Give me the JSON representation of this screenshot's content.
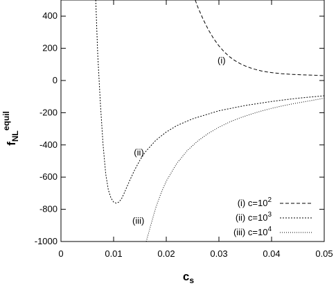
{
  "chart_data": {
    "type": "line",
    "xlabel_main": "c",
    "xlabel_sub": "s",
    "ylabel_main": "f",
    "ylabel_sub": "NL",
    "ylabel_sup": "equil",
    "xlim": [
      0,
      0.05
    ],
    "ylim": [
      -1000,
      500
    ],
    "xticks": [
      0,
      0.01,
      0.02,
      0.03,
      0.04,
      0.05
    ],
    "xtick_labels": [
      "0",
      "0.01",
      "0.02",
      "0.03",
      "0.04",
      "0.05"
    ],
    "yticks": [
      -1000,
      -800,
      -600,
      -400,
      -200,
      0,
      200,
      400
    ],
    "ytick_labels": [
      "-1000",
      "-800",
      "-600",
      "-400",
      "-200",
      "0",
      "200",
      "400"
    ],
    "grid": false,
    "legend_position": "bottom-right",
    "series": [
      {
        "id": "i",
        "legend_prefix": "(i) c=10",
        "legend_exp": "2",
        "annotation": "(i)",
        "annotation_at": [
          0.0305,
          105
        ],
        "color": "#000000",
        "dash": "5,3",
        "points": [
          [
            0.0255,
            500
          ],
          [
            0.026,
            455
          ],
          [
            0.027,
            380
          ],
          [
            0.028,
            315
          ],
          [
            0.029,
            260
          ],
          [
            0.03,
            215
          ],
          [
            0.031,
            178
          ],
          [
            0.032,
            148
          ],
          [
            0.033,
            124
          ],
          [
            0.034,
            105
          ],
          [
            0.035,
            90
          ],
          [
            0.036,
            78
          ],
          [
            0.037,
            68
          ],
          [
            0.038,
            60
          ],
          [
            0.039,
            54
          ],
          [
            0.04,
            49
          ],
          [
            0.042,
            42
          ],
          [
            0.044,
            38
          ],
          [
            0.046,
            35
          ],
          [
            0.048,
            33
          ],
          [
            0.05,
            30
          ]
        ]
      },
      {
        "id": "ii",
        "legend_prefix": "(ii) c=10",
        "legend_exp": "3",
        "annotation": "(ii)",
        "annotation_at": [
          0.0148,
          -465
        ],
        "color": "#000000",
        "dash": "2,2",
        "points": [
          [
            0.0066,
            500
          ],
          [
            0.0068,
            320
          ],
          [
            0.007,
            150
          ],
          [
            0.0075,
            -150
          ],
          [
            0.008,
            -400
          ],
          [
            0.0085,
            -580
          ],
          [
            0.009,
            -680
          ],
          [
            0.0095,
            -730
          ],
          [
            0.01,
            -755
          ],
          [
            0.0105,
            -762
          ],
          [
            0.011,
            -755
          ],
          [
            0.0115,
            -735
          ],
          [
            0.012,
            -700
          ],
          [
            0.013,
            -625
          ],
          [
            0.014,
            -555
          ],
          [
            0.015,
            -495
          ],
          [
            0.016,
            -445
          ],
          [
            0.018,
            -372
          ],
          [
            0.02,
            -320
          ],
          [
            0.022,
            -280
          ],
          [
            0.025,
            -238
          ],
          [
            0.03,
            -188
          ],
          [
            0.035,
            -155
          ],
          [
            0.04,
            -130
          ],
          [
            0.045,
            -110
          ],
          [
            0.05,
            -95
          ]
        ]
      },
      {
        "id": "iii",
        "legend_prefix": "(iii) c=10",
        "legend_exp": "4",
        "annotation": "(iii)",
        "annotation_at": [
          0.0147,
          -890
        ],
        "color": "#000000",
        "dash": "1,2",
        "points": [
          [
            0.0162,
            -1000
          ],
          [
            0.017,
            -905
          ],
          [
            0.018,
            -790
          ],
          [
            0.019,
            -700
          ],
          [
            0.02,
            -625
          ],
          [
            0.022,
            -515
          ],
          [
            0.024,
            -435
          ],
          [
            0.026,
            -375
          ],
          [
            0.028,
            -328
          ],
          [
            0.03,
            -290
          ],
          [
            0.032,
            -258
          ],
          [
            0.034,
            -232
          ],
          [
            0.036,
            -210
          ],
          [
            0.038,
            -190
          ],
          [
            0.04,
            -173
          ],
          [
            0.042,
            -158
          ],
          [
            0.044,
            -145
          ],
          [
            0.046,
            -133
          ],
          [
            0.048,
            -122
          ],
          [
            0.05,
            -110
          ]
        ]
      }
    ]
  }
}
